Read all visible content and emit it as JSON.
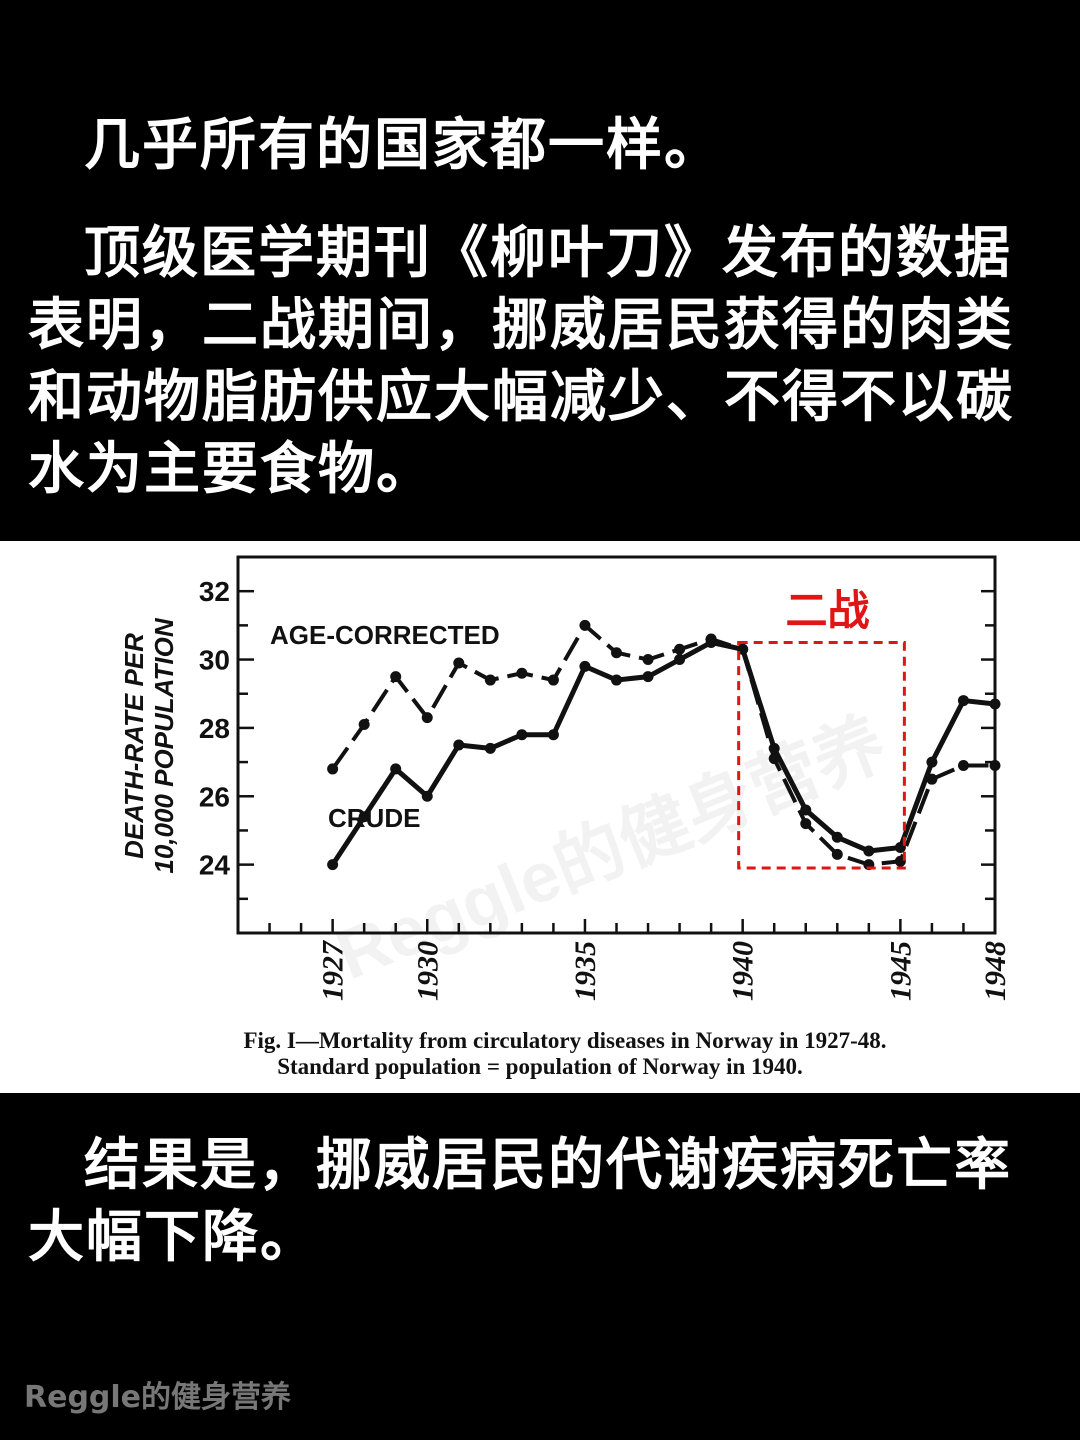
{
  "text": {
    "p1": "几乎所有的国家都一样。",
    "p2": "顶级医学期刊《柳叶刀》发布的数据表明，二战期间，挪威居民获得的肉类和动物脂肪供应大幅减少、不得不以碳水为主要食物。",
    "p3": "结果是，挪威居民的代谢疾病死亡率大幅下降。"
  },
  "figure": {
    "caption_line1": "Fig. I—Mortality from circulatory diseases in Norway in 1927-48.",
    "caption_line2": "Standard population = population of Norway in 1940.",
    "annotation": "二战",
    "annotation_color": "#e01515",
    "chart_watermark": "Reggle的健身营养"
  },
  "watermark": "Reggle的健身营养",
  "chart_data": {
    "type": "line",
    "ylabel_line1": "DEATH-RATE PER",
    "ylabel_line2": "10,000 POPULATION",
    "xlim": [
      1924,
      1948
    ],
    "ylim": [
      22,
      33
    ],
    "yticks": [
      24,
      26,
      28,
      30,
      32
    ],
    "xticks": [
      1927,
      1930,
      1935,
      1940,
      1945,
      1948
    ],
    "series": [
      {
        "name": "AGE-CORRECTED",
        "style": "dashed",
        "x": [
          1927,
          1928,
          1929,
          1930,
          1931,
          1932,
          1933,
          1934,
          1935,
          1936,
          1937,
          1938,
          1939,
          1940,
          1941,
          1942,
          1943,
          1944,
          1945,
          1946,
          1947,
          1948
        ],
        "y": [
          26.8,
          28.1,
          29.5,
          28.3,
          29.9,
          29.4,
          29.6,
          29.4,
          31.0,
          30.2,
          30.0,
          30.3,
          30.6,
          30.3,
          27.1,
          25.2,
          24.3,
          24.0,
          24.1,
          26.5,
          26.9,
          26.9
        ]
      },
      {
        "name": "CRUDE",
        "style": "solid",
        "x": [
          1927,
          1928,
          1929,
          1930,
          1931,
          1932,
          1933,
          1934,
          1935,
          1936,
          1937,
          1938,
          1939,
          1940,
          1941,
          1942,
          1943,
          1944,
          1945,
          1946,
          1947,
          1948
        ],
        "y": [
          24.0,
          25.4,
          26.8,
          26.0,
          27.5,
          27.4,
          27.8,
          27.8,
          29.8,
          29.4,
          29.5,
          30.0,
          30.5,
          30.3,
          27.4,
          25.6,
          24.8,
          24.4,
          24.5,
          27.0,
          28.8,
          28.7
        ]
      }
    ],
    "highlight": {
      "x_from": 1940,
      "x_to": 1945,
      "y_from": 23.9,
      "y_to": 30.5
    }
  }
}
